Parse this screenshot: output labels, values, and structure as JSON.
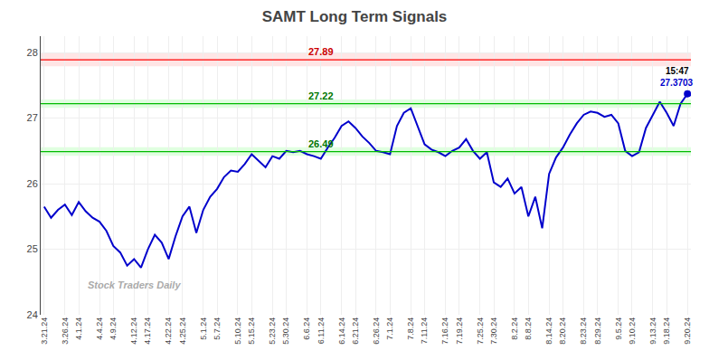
{
  "chart_data": {
    "type": "line",
    "title": "SAMT Long Term Signals",
    "categories": [
      "3.21.24",
      null,
      null,
      "3.26.24",
      null,
      "4.1.24",
      null,
      null,
      "4.4.24",
      null,
      "4.9.24",
      null,
      null,
      "4.12.24",
      null,
      "4.17.24",
      null,
      null,
      "4.22.24",
      null,
      "4.25.24",
      null,
      null,
      "5.1.24",
      null,
      "5.7.24",
      null,
      null,
      "5.10.24",
      null,
      "5.15.24",
      null,
      null,
      "5.23.24",
      null,
      "5.30.24",
      null,
      null,
      "6.6.24",
      null,
      "6.11.24",
      null,
      null,
      "6.14.24",
      null,
      "6.21.24",
      null,
      null,
      "6.26.24",
      null,
      "7.1.24",
      null,
      null,
      "7.8.24",
      null,
      "7.11.24",
      null,
      null,
      "7.16.24",
      null,
      "7.19.24",
      null,
      null,
      "7.25.24",
      null,
      "7.30.24",
      null,
      null,
      "8.2.24",
      null,
      "8.8.24",
      null,
      null,
      "8.14.24",
      null,
      "8.20.24",
      null,
      null,
      "8.23.24",
      null,
      "8.29.24",
      null,
      null,
      "9.5.24",
      null,
      "9.10.24",
      null,
      null,
      "9.13.24",
      null,
      "9.18.24",
      null,
      null,
      "9.20.24"
    ],
    "values": [
      25.65,
      25.48,
      25.6,
      25.68,
      25.52,
      25.72,
      25.58,
      25.48,
      25.42,
      25.28,
      25.05,
      24.95,
      24.75,
      24.85,
      24.72,
      25.0,
      25.22,
      25.1,
      24.85,
      25.2,
      25.5,
      25.65,
      25.25,
      25.6,
      25.8,
      25.92,
      26.1,
      26.2,
      26.18,
      26.3,
      26.45,
      26.35,
      26.25,
      26.42,
      26.38,
      26.5,
      26.48,
      26.5,
      26.45,
      26.42,
      26.38,
      26.55,
      26.7,
      26.88,
      26.95,
      26.85,
      26.72,
      26.62,
      26.5,
      26.48,
      26.45,
      26.88,
      27.08,
      27.15,
      26.88,
      26.6,
      26.52,
      26.48,
      26.42,
      26.5,
      26.55,
      26.68,
      26.5,
      26.38,
      26.48,
      26.02,
      25.95,
      26.08,
      25.85,
      25.95,
      25.5,
      25.8,
      25.32,
      26.15,
      26.4,
      26.55,
      26.75,
      26.92,
      27.05,
      27.1,
      27.08,
      27.02,
      27.05,
      26.92,
      26.5,
      26.42,
      26.48,
      26.85,
      27.05,
      27.25,
      27.08,
      26.88,
      27.22,
      27.37
    ],
    "color": "#0000cc",
    "hlines": [
      {
        "value": 27.89,
        "color": "#ff0000",
        "band_color": "#ffcccc",
        "label": "27.89",
        "label_color": "#cc0000"
      },
      {
        "value": 27.22,
        "color": "#00bb00",
        "band_color": "#ccffcc",
        "label": "27.22",
        "label_color": "#007700"
      },
      {
        "value": 26.49,
        "color": "#00bb00",
        "band_color": "#ccffcc",
        "label": "26.49",
        "label_color": "#007700"
      }
    ],
    "annotations": [
      {
        "text": "15:47",
        "color": "#000000"
      },
      {
        "text": "27.3703",
        "color": "#0000cc"
      }
    ],
    "watermark": {
      "text": "Stock Traders Daily",
      "color": "#aaaaaa"
    },
    "ylim": [
      24.0,
      28.25
    ],
    "yticks": [
      24,
      25,
      26,
      27,
      28
    ],
    "grid": true
  }
}
